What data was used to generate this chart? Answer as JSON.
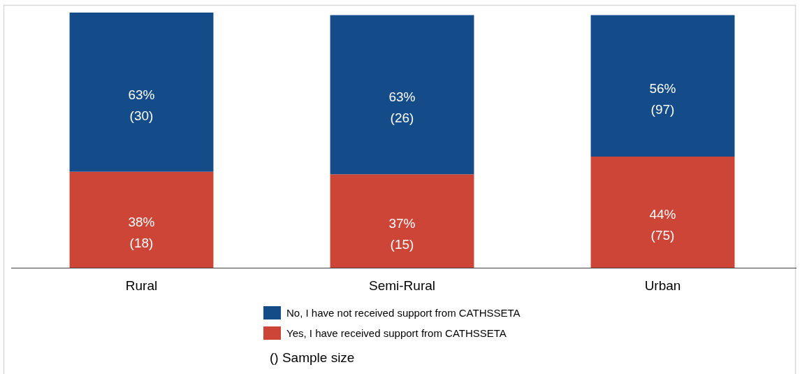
{
  "chart_data": {
    "type": "bar",
    "stacked": true,
    "categories": [
      "Rural",
      "Semi-Rural",
      "Urban"
    ],
    "series": [
      {
        "name": "Yes, I have received support from CATHSSETA",
        "color": "#cc4536",
        "values": [
          38,
          37,
          44
        ],
        "value_labels": [
          "38%\n(18)",
          "37%\n(15)",
          "44%\n(75)"
        ]
      },
      {
        "name": "No, I have not received support from CATHSSETA",
        "color": "#144b89",
        "values": [
          63,
          63,
          56
        ],
        "value_labels": [
          "63%\n(30)",
          "63%\n(26)",
          "56%\n(97)"
        ]
      }
    ],
    "legend": "bottom",
    "annotations": [
      "() Sample size"
    ]
  }
}
